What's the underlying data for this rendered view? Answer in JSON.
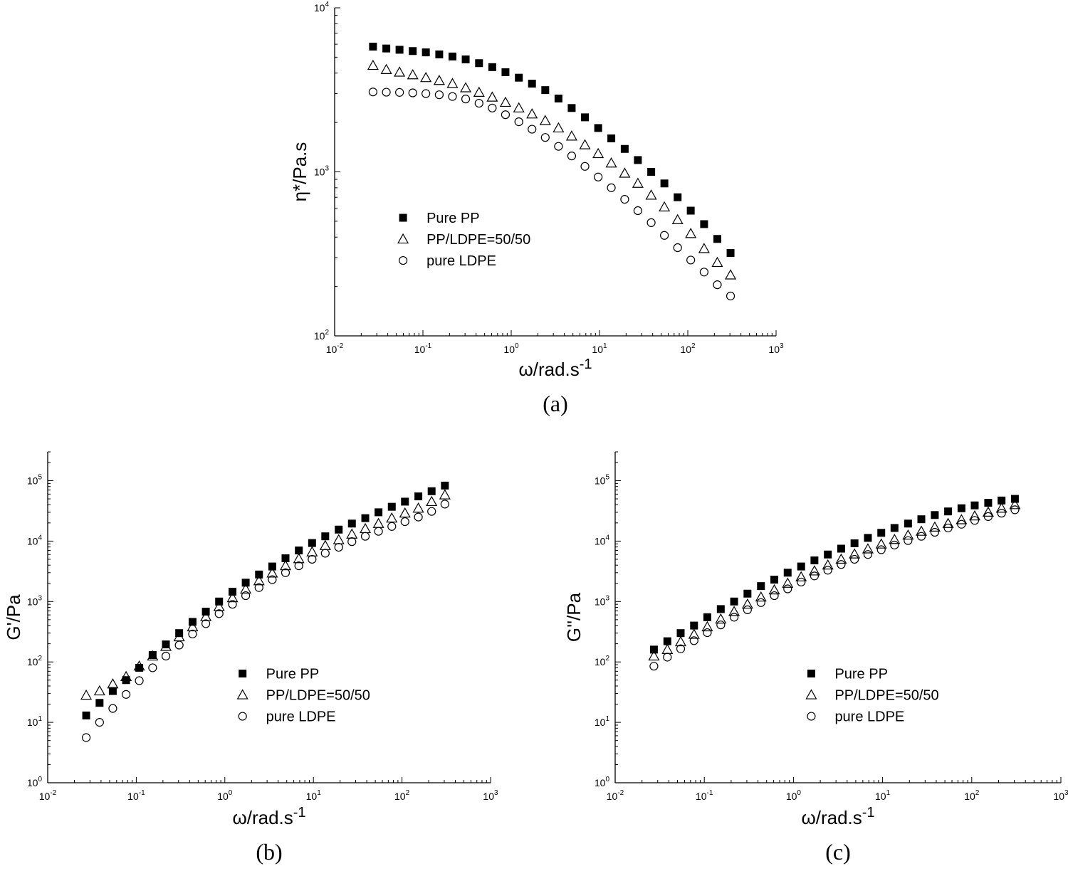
{
  "chart_data": [
    {
      "type": "scatter",
      "caption": "(a)",
      "y_label": "η*/Pa.s",
      "x_label": "ω/rad.s",
      "x_label_sup": "-1",
      "log_x": true,
      "log_y": true,
      "legend": "center left",
      "xlim": [
        0.01,
        1000
      ],
      "ylim": [
        100,
        10000
      ],
      "xticks": [
        {
          "value": 0.01,
          "label": "10",
          "sup": "-2"
        },
        {
          "value": 0.1,
          "label": "10",
          "sup": "-1"
        },
        {
          "value": 1,
          "label": "10",
          "sup": "0"
        },
        {
          "value": 10,
          "label": "10",
          "sup": "1"
        },
        {
          "value": 100,
          "label": "10",
          "sup": "2"
        },
        {
          "value": 1000,
          "label": "10",
          "sup": "3"
        }
      ],
      "yticks": [
        {
          "value": 100,
          "label": "10",
          "sup": "2"
        },
        {
          "value": 1000,
          "label": "10",
          "sup": "3"
        },
        {
          "value": 10000,
          "label": "10",
          "sup": "4"
        }
      ],
      "x": [
        0.0272,
        0.0385,
        0.0543,
        0.0767,
        0.108,
        0.153,
        0.216,
        0.305,
        0.432,
        0.61,
        0.861,
        1.22,
        1.72,
        2.43,
        3.43,
        4.84,
        6.84,
        9.66,
        13.6,
        19.3,
        27.2,
        38.5,
        54.3,
        76.7,
        108,
        153,
        216,
        305
      ],
      "series": [
        {
          "name": "Pure PP",
          "color": "#000000",
          "marker": "filled-square",
          "values": [
            5800,
            5650,
            5550,
            5450,
            5350,
            5200,
            5050,
            4850,
            4600,
            4350,
            4050,
            3750,
            3450,
            3150,
            2800,
            2450,
            2150,
            1850,
            1600,
            1380,
            1180,
            1000,
            850,
            700,
            580,
            480,
            390,
            320
          ]
        },
        {
          "name": "PP/LDPE=50/50",
          "color": "#000000",
          "marker": "open-triangle",
          "values": [
            4450,
            4200,
            4050,
            3900,
            3750,
            3600,
            3450,
            3250,
            3050,
            2850,
            2650,
            2450,
            2250,
            2050,
            1850,
            1650,
            1460,
            1290,
            1130,
            980,
            850,
            720,
            610,
            510,
            420,
            340,
            280,
            235
          ]
        },
        {
          "name": "pure LDPE",
          "color": "#000000",
          "marker": "open-circle",
          "values": [
            3070,
            3060,
            3050,
            3030,
            3000,
            2950,
            2880,
            2780,
            2620,
            2450,
            2230,
            2020,
            1820,
            1620,
            1430,
            1250,
            1080,
            930,
            800,
            680,
            580,
            490,
            410,
            345,
            290,
            245,
            205,
            175
          ]
        }
      ]
    },
    {
      "type": "scatter",
      "caption": "(b)",
      "y_label": "G'/Pa",
      "x_label": "ω/rad.s",
      "x_label_sup": "-1",
      "log_x": true,
      "log_y": true,
      "legend": "lower right",
      "xlim": [
        0.01,
        1000
      ],
      "ylim": [
        1,
        300000
      ],
      "xticks": [
        {
          "value": 0.01,
          "label": "10",
          "sup": "-2"
        },
        {
          "value": 0.1,
          "label": "10",
          "sup": "-1"
        },
        {
          "value": 1,
          "label": "10",
          "sup": "0"
        },
        {
          "value": 10,
          "label": "10",
          "sup": "1"
        },
        {
          "value": 100,
          "label": "10",
          "sup": "2"
        },
        {
          "value": 1000,
          "label": "10",
          "sup": "3"
        }
      ],
      "yticks": [
        {
          "value": 1,
          "label": "10",
          "sup": "0"
        },
        {
          "value": 10,
          "label": "10",
          "sup": "1"
        },
        {
          "value": 100,
          "label": "10",
          "sup": "2"
        },
        {
          "value": 1000,
          "label": "10",
          "sup": "3"
        },
        {
          "value": 10000,
          "label": "10",
          "sup": "4"
        },
        {
          "value": 100000,
          "label": "10",
          "sup": "5"
        }
      ],
      "x": [
        0.0272,
        0.0385,
        0.0543,
        0.0767,
        0.108,
        0.153,
        0.216,
        0.305,
        0.432,
        0.61,
        0.861,
        1.22,
        1.72,
        2.43,
        3.43,
        4.84,
        6.84,
        9.66,
        13.6,
        19.3,
        27.2,
        38.5,
        54.3,
        76.7,
        108,
        153,
        216,
        305
      ],
      "series": [
        {
          "name": "Pure PP",
          "color": "#000000",
          "marker": "filled-square",
          "values": [
            13,
            21,
            33,
            50,
            80,
            130,
            195,
            300,
            460,
            680,
            1000,
            1450,
            2050,
            2800,
            3800,
            5200,
            7000,
            9300,
            12000,
            15500,
            19500,
            24000,
            30000,
            37000,
            45000,
            55000,
            67000,
            83000
          ]
        },
        {
          "name": "PP/LDPE=50/50",
          "color": "#000000",
          "marker": "open-triangle",
          "values": [
            28,
            33,
            43,
            57,
            85,
            125,
            180,
            260,
            380,
            560,
            820,
            1150,
            1600,
            2200,
            2950,
            3900,
            5100,
            6600,
            8400,
            10500,
            13000,
            16000,
            19500,
            24000,
            29000,
            35000,
            45000,
            58000
          ]
        },
        {
          "name": "pure LDPE",
          "color": "#000000",
          "marker": "open-circle",
          "values": [
            5.6,
            10,
            17,
            29,
            49,
            80,
            125,
            190,
            290,
            430,
            630,
            900,
            1250,
            1700,
            2300,
            3000,
            3900,
            5000,
            6300,
            7900,
            9800,
            12000,
            14500,
            17500,
            21000,
            25000,
            31000,
            41000
          ]
        }
      ]
    },
    {
      "type": "scatter",
      "caption": "(c)",
      "y_label": "G''/Pa",
      "x_label": "ω/rad.s",
      "x_label_sup": "-1",
      "log_x": true,
      "log_y": true,
      "legend": "lower right",
      "xlim": [
        0.01,
        1000
      ],
      "ylim": [
        1,
        300000
      ],
      "xticks": [
        {
          "value": 0.01,
          "label": "10",
          "sup": "-2"
        },
        {
          "value": 0.1,
          "label": "10",
          "sup": "-1"
        },
        {
          "value": 1,
          "label": "10",
          "sup": "0"
        },
        {
          "value": 10,
          "label": "10",
          "sup": "1"
        },
        {
          "value": 100,
          "label": "10",
          "sup": "2"
        },
        {
          "value": 1000,
          "label": "10",
          "sup": "3"
        }
      ],
      "yticks": [
        {
          "value": 1,
          "label": "10",
          "sup": "0"
        },
        {
          "value": 10,
          "label": "10",
          "sup": "1"
        },
        {
          "value": 100,
          "label": "10",
          "sup": "2"
        },
        {
          "value": 1000,
          "label": "10",
          "sup": "3"
        },
        {
          "value": 10000,
          "label": "10",
          "sup": "4"
        },
        {
          "value": 100000,
          "label": "10",
          "sup": "5"
        }
      ],
      "x": [
        0.0272,
        0.0385,
        0.0543,
        0.0767,
        0.108,
        0.153,
        0.216,
        0.305,
        0.432,
        0.61,
        0.861,
        1.22,
        1.72,
        2.43,
        3.43,
        4.84,
        6.84,
        9.66,
        13.6,
        19.3,
        27.2,
        38.5,
        54.3,
        76.7,
        108,
        153,
        216,
        305
      ],
      "series": [
        {
          "name": "Pure PP",
          "color": "#000000",
          "marker": "filled-square",
          "values": [
            160,
            220,
            300,
            400,
            550,
            750,
            1000,
            1350,
            1800,
            2300,
            3000,
            3800,
            4800,
            6000,
            7500,
            9200,
            11300,
            13700,
            16500,
            19500,
            23000,
            27000,
            31000,
            35000,
            39000,
            43000,
            47000,
            50000
          ]
        },
        {
          "name": "PP/LDPE=50/50",
          "color": "#000000",
          "marker": "open-triangle",
          "values": [
            125,
            160,
            215,
            285,
            380,
            510,
            680,
            900,
            1180,
            1550,
            2000,
            2550,
            3200,
            4000,
            5000,
            6100,
            7400,
            8900,
            10600,
            12500,
            14500,
            17000,
            19500,
            22500,
            26000,
            30000,
            35000,
            40000
          ]
        },
        {
          "name": "pure LDPE",
          "color": "#000000",
          "marker": "open-circle",
          "values": [
            85,
            120,
            165,
            225,
            305,
            410,
            550,
            730,
            960,
            1250,
            1620,
            2100,
            2650,
            3300,
            4100,
            5000,
            6000,
            7200,
            8600,
            10200,
            12000,
            14000,
            16500,
            19000,
            22000,
            25500,
            29000,
            33000
          ]
        }
      ]
    }
  ]
}
